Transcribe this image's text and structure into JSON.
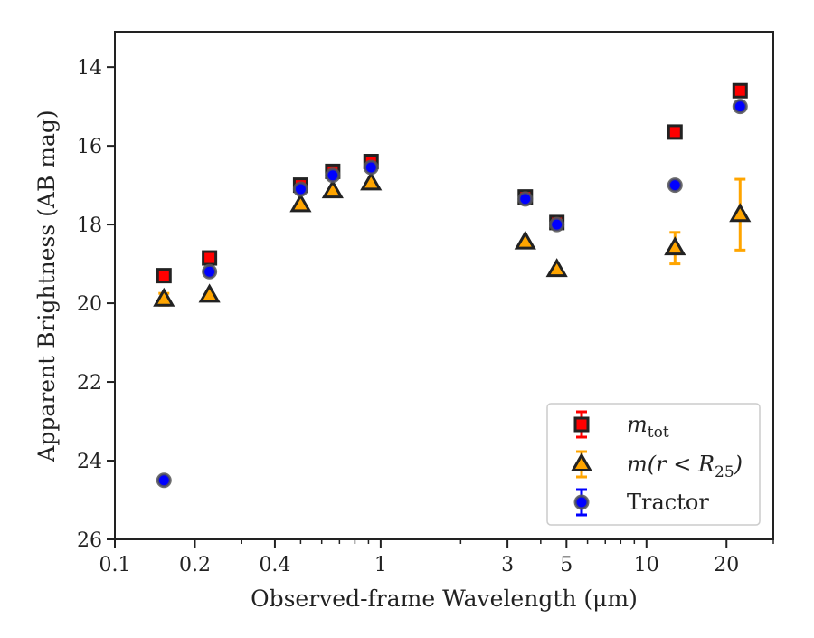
{
  "chart_data": {
    "type": "scatter",
    "xlabel": "Observed-frame Wavelength (μm)",
    "ylabel": "Apparent Brightness (AB mag)",
    "x_scale": "log",
    "y_inverted": true,
    "xlim": [
      0.1,
      30
    ],
    "ylim": [
      26,
      13.1
    ],
    "xticks": [
      {
        "value": 0.1,
        "label": "0.1"
      },
      {
        "value": 0.2,
        "label": "0.2"
      },
      {
        "value": 0.4,
        "label": "0.4"
      },
      {
        "value": 1,
        "label": "1"
      },
      {
        "value": 3,
        "label": "3"
      },
      {
        "value": 5,
        "label": "5"
      },
      {
        "value": 10,
        "label": "10"
      },
      {
        "value": 20,
        "label": "20"
      }
    ],
    "yticks": [
      {
        "value": 14,
        "label": "14"
      },
      {
        "value": 16,
        "label": "16"
      },
      {
        "value": 18,
        "label": "18"
      },
      {
        "value": 20,
        "label": "20"
      },
      {
        "value": 22,
        "label": "22"
      },
      {
        "value": 24,
        "label": "24"
      },
      {
        "value": 26,
        "label": "26"
      }
    ],
    "grid": false,
    "legend_position": "bottom-right",
    "series": [
      {
        "name": "m_tot",
        "marker": "square",
        "color": "#ff0000",
        "edge_color": "#222222",
        "error_color": "#ff0000",
        "x": [
          0.153,
          0.227,
          0.5,
          0.66,
          0.92,
          3.5,
          4.6,
          12.8,
          22.5
        ],
        "y": [
          19.3,
          18.85,
          17.0,
          16.65,
          16.4,
          17.3,
          17.95,
          15.65,
          14.6
        ],
        "yerr": [
          0.0,
          0.0,
          0.0,
          0.0,
          0.0,
          0.0,
          0.0,
          0.0,
          0.0
        ]
      },
      {
        "name": "m(r < R_25)",
        "marker": "triangle",
        "color": "#ffa500",
        "edge_color": "#222222",
        "error_color": "#ffa500",
        "x": [
          0.153,
          0.227,
          0.5,
          0.66,
          0.92,
          3.5,
          4.6,
          12.8,
          22.5
        ],
        "y": [
          19.9,
          19.8,
          17.5,
          17.15,
          16.95,
          18.45,
          19.15,
          18.6,
          17.75
        ],
        "yerr": [
          0.15,
          0.0,
          0.0,
          0.0,
          0.0,
          0.0,
          0.0,
          0.4,
          0.9
        ]
      },
      {
        "name": "Tractor",
        "marker": "circle",
        "color": "#0000ff",
        "edge_color": "#555555",
        "error_color": "#0000ff",
        "x": [
          0.153,
          0.227,
          0.5,
          0.66,
          0.92,
          3.5,
          4.6,
          12.8,
          22.5
        ],
        "y": [
          24.5,
          19.2,
          17.1,
          16.75,
          16.55,
          17.35,
          18.0,
          17.0,
          15.0
        ],
        "yerr": [
          0.0,
          0.0,
          0.0,
          0.0,
          0.0,
          0.0,
          0.0,
          0.0,
          0.0
        ]
      }
    ],
    "legend": [
      {
        "label_main": "m",
        "label_sub": "tot",
        "label_rest": "",
        "series": 0
      },
      {
        "label_main": "m(r < R",
        "label_sub": "25",
        "label_rest": ")",
        "series": 1
      },
      {
        "label_main": "Tractor",
        "label_sub": "",
        "label_rest": "",
        "series": 2
      }
    ]
  }
}
